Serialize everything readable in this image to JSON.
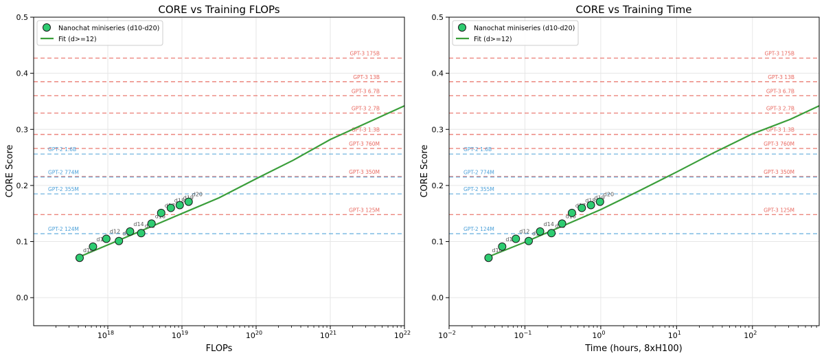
{
  "colors": {
    "point_fill": "#2ecc71",
    "point_edge": "#1a1a1a",
    "fit_line": "#3a9e3a",
    "gpt3_ref": "#e8685f",
    "gpt2_ref": "#4a9fd8",
    "grid": "#e6e6e6",
    "axis": "#000000",
    "point_label": "#555555"
  },
  "legend": {
    "points_label": "Nanochat miniseries (d10-d20)",
    "fit_label": "Fit (d>=12)"
  },
  "chart_data": [
    {
      "type": "scatter",
      "title": "CORE vs Training FLOPs",
      "xlabel": "FLOPs",
      "ylabel": "CORE Score",
      "xscale": "log",
      "xlim_log10": [
        17.0,
        22.0
      ],
      "ylim": [
        -0.05,
        0.5
      ],
      "grid": true,
      "legend_position": "top-left",
      "x_ticks": [
        {
          "base": "10",
          "exp": "18",
          "log10": 18
        },
        {
          "base": "10",
          "exp": "19",
          "log10": 19
        },
        {
          "base": "10",
          "exp": "20",
          "log10": 20
        },
        {
          "base": "10",
          "exp": "21",
          "log10": 21
        },
        {
          "base": "10",
          "exp": "22",
          "log10": 22
        }
      ],
      "y_ticks": [
        "0.0",
        "0.1",
        "0.2",
        "0.3",
        "0.4",
        "0.5"
      ],
      "points": [
        {
          "label": "d10",
          "x_log10": 17.62,
          "y": 0.071
        },
        {
          "label": "d11",
          "x_log10": 17.8,
          "y": 0.091
        },
        {
          "label": "d12",
          "x_log10": 17.98,
          "y": 0.105
        },
        {
          "label": "d13",
          "x_log10": 18.15,
          "y": 0.101
        },
        {
          "label": "d14",
          "x_log10": 18.3,
          "y": 0.118
        },
        {
          "label": "d15",
          "x_log10": 18.45,
          "y": 0.115
        },
        {
          "label": "d16",
          "x_log10": 18.59,
          "y": 0.132
        },
        {
          "label": "d17",
          "x_log10": 18.72,
          "y": 0.151
        },
        {
          "label": "d18",
          "x_log10": 18.85,
          "y": 0.16
        },
        {
          "label": "d19",
          "x_log10": 18.97,
          "y": 0.165
        },
        {
          "label": "d20",
          "x_log10": 19.09,
          "y": 0.171
        }
      ],
      "fit": {
        "x_log10": [
          17.62,
          18.0,
          18.5,
          19.0,
          19.5,
          20.0,
          20.5,
          21.0,
          21.5,
          22.0
        ],
        "y": [
          0.073,
          0.094,
          0.122,
          0.15,
          0.178,
          0.212,
          0.245,
          0.282,
          0.312,
          0.342
        ]
      },
      "gpt3_refs": [
        {
          "label": "GPT-3 175B",
          "y": 0.427
        },
        {
          "label": "GPT-3 13B",
          "y": 0.385
        },
        {
          "label": "GPT-3 6.7B",
          "y": 0.36
        },
        {
          "label": "GPT-3 2.7B",
          "y": 0.329
        },
        {
          "label": "GPT-3 1.3B",
          "y": 0.291
        },
        {
          "label": "GPT-3 760M",
          "y": 0.266
        },
        {
          "label": "GPT-3 350M",
          "y": 0.216
        },
        {
          "label": "GPT-3 125M",
          "y": 0.148
        }
      ],
      "gpt2_refs": [
        {
          "label": "GPT-2 1.6B",
          "y": 0.256
        },
        {
          "label": "GPT-2 774M",
          "y": 0.215
        },
        {
          "label": "GPT-2 355M",
          "y": 0.185
        },
        {
          "label": "GPT-2 124M",
          "y": 0.114
        }
      ]
    },
    {
      "type": "scatter",
      "title": "CORE vs Training Time",
      "xlabel": "Time (hours, 8xH100)",
      "ylabel": "CORE Score",
      "xscale": "log",
      "xlim_log10": [
        -2.0,
        2.88
      ],
      "ylim": [
        -0.05,
        0.5
      ],
      "grid": true,
      "legend_position": "top-left",
      "x_ticks": [
        {
          "base": "10",
          "exp": "−2",
          "log10": -2
        },
        {
          "base": "10",
          "exp": "−1",
          "log10": -1
        },
        {
          "base": "10",
          "exp": "0",
          "log10": 0
        },
        {
          "base": "10",
          "exp": "1",
          "log10": 1
        },
        {
          "base": "10",
          "exp": "2",
          "log10": 2
        }
      ],
      "y_ticks": [
        "0.0",
        "0.1",
        "0.2",
        "0.3",
        "0.4",
        "0.5"
      ],
      "points": [
        {
          "label": "d10",
          "x_log10": -1.48,
          "y": 0.071
        },
        {
          "label": "d11",
          "x_log10": -1.3,
          "y": 0.091
        },
        {
          "label": "d12",
          "x_log10": -1.12,
          "y": 0.105
        },
        {
          "label": "d13",
          "x_log10": -0.95,
          "y": 0.101
        },
        {
          "label": "d14",
          "x_log10": -0.8,
          "y": 0.118
        },
        {
          "label": "d15",
          "x_log10": -0.65,
          "y": 0.115
        },
        {
          "label": "d16",
          "x_log10": -0.51,
          "y": 0.132
        },
        {
          "label": "d17",
          "x_log10": -0.38,
          "y": 0.151
        },
        {
          "label": "d18",
          "x_log10": -0.25,
          "y": 0.16
        },
        {
          "label": "d19",
          "x_log10": -0.13,
          "y": 0.165
        },
        {
          "label": "d20",
          "x_log10": -0.01,
          "y": 0.171
        }
      ],
      "fit": {
        "x_log10": [
          -1.48,
          -1.0,
          -0.5,
          0.0,
          0.5,
          1.0,
          1.5,
          2.0,
          2.5,
          2.88
        ],
        "y": [
          0.073,
          0.099,
          0.128,
          0.157,
          0.19,
          0.224,
          0.259,
          0.292,
          0.318,
          0.342
        ]
      },
      "gpt3_refs": [
        {
          "label": "GPT-3 175B",
          "y": 0.427
        },
        {
          "label": "GPT-3 13B",
          "y": 0.385
        },
        {
          "label": "GPT-3 6.7B",
          "y": 0.36
        },
        {
          "label": "GPT-3 2.7B",
          "y": 0.329
        },
        {
          "label": "GPT-3 1.3B",
          "y": 0.291
        },
        {
          "label": "GPT-3 760M",
          "y": 0.266
        },
        {
          "label": "GPT-3 350M",
          "y": 0.216
        },
        {
          "label": "GPT-3 125M",
          "y": 0.148
        }
      ],
      "gpt2_refs": [
        {
          "label": "GPT-2 1.6B",
          "y": 0.256
        },
        {
          "label": "GPT-2 774M",
          "y": 0.215
        },
        {
          "label": "GPT-2 355M",
          "y": 0.185
        },
        {
          "label": "GPT-2 124M",
          "y": 0.114
        }
      ]
    }
  ]
}
